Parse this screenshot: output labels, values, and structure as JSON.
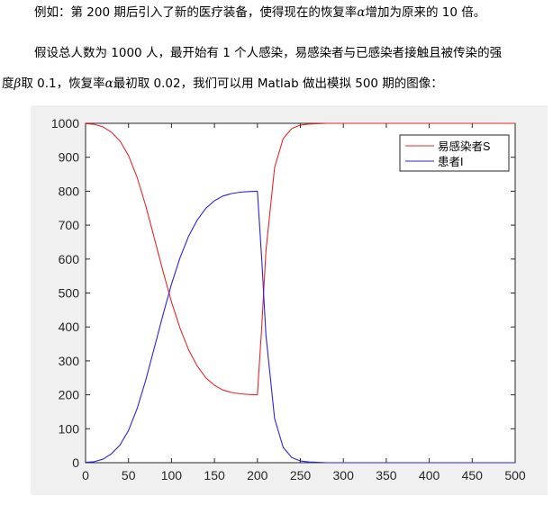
{
  "paragraphs": {
    "p1": [
      "例如：第 200 期后引入了新的医疗装备，使得现在的恢复率",
      "α",
      "增加为原来的 10 倍。"
    ],
    "p2": [
      "假设总人数为 1000 人，最开始有 1 个人感染，易感染者与已感染者接触且被传染的强"
    ],
    "p3": [
      "度",
      "β",
      "取 0.1，恢复率",
      "α",
      "最初取 0.02，我们可以用 Matlab 做出模拟 500 期的图像："
    ]
  },
  "chart_data": {
    "type": "line",
    "xlim": [
      0,
      500
    ],
    "ylim": [
      0,
      1000
    ],
    "xticks": [
      0,
      50,
      100,
      150,
      200,
      250,
      300,
      350,
      400,
      450,
      500
    ],
    "yticks": [
      0,
      100,
      200,
      300,
      400,
      500,
      600,
      700,
      800,
      900,
      1000
    ],
    "legend_position": "top-right",
    "series": [
      {
        "name": "易感染者S",
        "color": "#e8262a",
        "x": [
          0,
          10,
          20,
          30,
          40,
          50,
          60,
          70,
          80,
          90,
          100,
          110,
          120,
          130,
          140,
          150,
          160,
          170,
          180,
          190,
          199,
          200,
          205,
          210,
          220,
          230,
          240,
          250,
          260,
          270,
          280,
          300,
          400,
          500
        ],
        "y": [
          999,
          997,
          990,
          974,
          948,
          905,
          841,
          757,
          662,
          565,
          474,
          396,
          332,
          285,
          250,
          228,
          214,
          207,
          203,
          201,
          200,
          200,
          400,
          625,
          870,
          955,
          985,
          995,
          998,
          999,
          1000,
          1000,
          1000,
          1000
        ]
      },
      {
        "name": "患者I",
        "color": "#2b22e0",
        "x": [
          0,
          10,
          20,
          30,
          40,
          50,
          60,
          70,
          80,
          90,
          100,
          110,
          120,
          130,
          140,
          150,
          160,
          170,
          180,
          190,
          199,
          200,
          205,
          210,
          220,
          230,
          240,
          250,
          260,
          270,
          280,
          300,
          400,
          500
        ],
        "y": [
          1,
          3,
          10,
          26,
          52,
          95,
          159,
          243,
          338,
          435,
          526,
          604,
          668,
          715,
          750,
          772,
          786,
          793,
          797,
          799,
          800,
          800,
          600,
          375,
          130,
          45,
          15,
          5,
          2,
          1,
          0,
          0,
          0,
          0
        ]
      }
    ]
  }
}
